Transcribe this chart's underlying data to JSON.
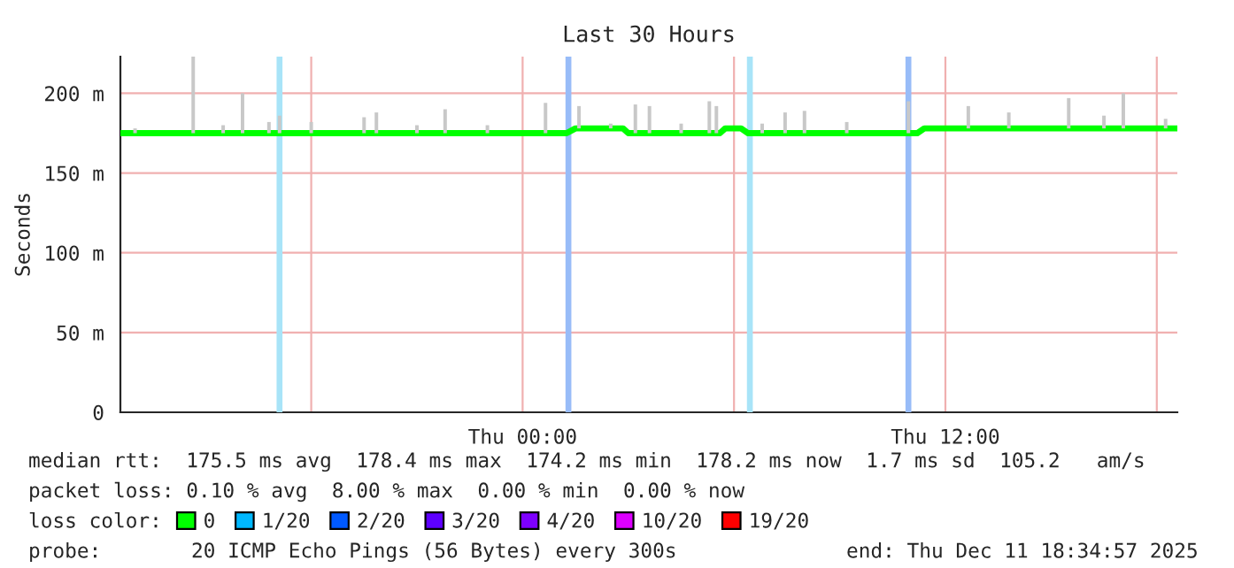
{
  "chart_data": {
    "type": "line",
    "title": "Last 30 Hours",
    "ylabel": "Seconds",
    "xlim": [
      "2025-12-10T12:35",
      "2025-12-11T18:35"
    ],
    "ylim": [
      0,
      223
    ],
    "xticks": [
      {
        "value": "2025-12-10T18:00",
        "label": null
      },
      {
        "value": "2025-12-11T00:00",
        "label": "Thu 00:00"
      },
      {
        "value": "2025-12-11T06:00",
        "label": null
      },
      {
        "value": "2025-12-11T12:00",
        "label": "Thu 12:00"
      },
      {
        "value": "2025-12-11T18:00",
        "label": null
      }
    ],
    "yticks": [
      0,
      {
        "value": 50,
        "label": "50 m"
      },
      {
        "value": 100,
        "label": "100 m"
      },
      {
        "value": 150,
        "label": "150 m"
      },
      {
        "value": 200,
        "label": "200 m"
      }
    ],
    "grid": true,
    "legend": "bottom left",
    "legend_title": "loss color:",
    "series": [
      {
        "type": "bar",
        "color": "#c8c8c8",
        "x": [
          "2025-12-10T13:00",
          "2025-12-10T14:39",
          "2025-12-10T15:30",
          "2025-12-10T16:03",
          "2025-12-10T16:48",
          "2025-12-10T17:06",
          "2025-12-10T18:00",
          "2025-12-10T19:30",
          "2025-12-10T19:51",
          "2025-12-10T21:00",
          "2025-12-10T21:48",
          "2025-12-10T23:00",
          "2025-12-11T00:39",
          "2025-12-11T01:36",
          "2025-12-11T02:30",
          "2025-12-11T03:12",
          "2025-12-11T03:36",
          "2025-12-11T04:30",
          "2025-12-11T05:18",
          "2025-12-11T05:30",
          "2025-12-11T06:48",
          "2025-12-11T07:27",
          "2025-12-11T08:00",
          "2025-12-11T09:12",
          "2025-12-11T10:57",
          "2025-12-11T12:39",
          "2025-12-11T13:48",
          "2025-12-11T15:30",
          "2025-12-11T16:30",
          "2025-12-11T17:03",
          "2025-12-11T18:15"
        ],
        "base": [
          175,
          175,
          175,
          175,
          175,
          175,
          175,
          175,
          175,
          175,
          175,
          175,
          175,
          178,
          178,
          175,
          175,
          175,
          175,
          175,
          175,
          175,
          175,
          175,
          175,
          178,
          178,
          178,
          178,
          178,
          178
        ],
        "values": [
          3,
          48,
          5,
          25,
          7,
          11,
          7,
          10,
          13,
          5,
          15,
          5,
          19,
          14,
          3,
          18,
          17,
          6,
          20,
          17,
          6,
          13,
          14,
          7,
          20,
          14,
          10,
          19,
          8,
          22,
          6
        ]
      },
      {
        "name": "0",
        "color": "#00ff00",
        "x": [
          "2025-12-10T12:35",
          "2025-12-11T01:15",
          "2025-12-11T01:30",
          "2025-12-11T02:51",
          "2025-12-11T03:00",
          "2025-12-11T05:36",
          "2025-12-11T05:45",
          "2025-12-11T06:12",
          "2025-12-11T06:24",
          "2025-12-11T11:12",
          "2025-12-11T11:24",
          "2025-12-11T18:35"
        ],
        "values": [
          175,
          175,
          178,
          178,
          175,
          175,
          178,
          178,
          175,
          175,
          178,
          178
        ]
      },
      {
        "name": "1/20",
        "color": "#00b8ff"
      },
      {
        "name": "2/20",
        "color": "#0059ff"
      },
      {
        "name": "3/20",
        "color": "#5e00ff"
      },
      {
        "name": "4/20",
        "color": "#7e00ff"
      },
      {
        "name": "10/20",
        "color": "#dd00ff"
      },
      {
        "name": "19/20",
        "color": "#ff0000"
      }
    ],
    "bands": [
      {
        "axis": "x",
        "from": "2025-12-10T17:01",
        "to": "2025-12-10T17:11",
        "color": "#a8e4f8"
      },
      {
        "axis": "x",
        "from": "2025-12-11T01:13",
        "to": "2025-12-11T01:23",
        "color": "#98bcf8"
      },
      {
        "axis": "x",
        "from": "2025-12-11T06:22",
        "to": "2025-12-11T06:32",
        "color": "#a8e4f8"
      },
      {
        "axis": "x",
        "from": "2025-12-11T10:52",
        "to": "2025-12-11T11:02",
        "color": "#98bcf8"
      }
    ],
    "annotations": [
      "median rtt:  175.5 ms avg  178.4 ms max  174.2 ms min  178.2 ms now  1.7 ms sd  105.2   am/s",
      "packet loss: 0.10 % avg  8.00 % max  0.00 % min  0.00 % now",
      "probe:",
      "20 ICMP Echo Pings (56 Bytes) every 300s",
      "end: Thu Dec 11 18:34:57 2025"
    ]
  }
}
